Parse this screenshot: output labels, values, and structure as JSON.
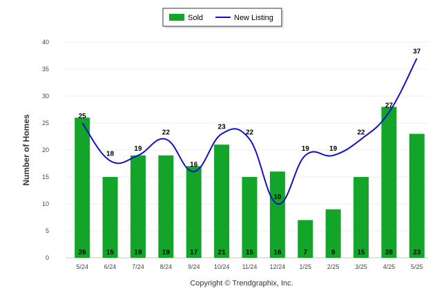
{
  "chart_data": {
    "type": "bar",
    "categories": [
      "5/24",
      "6/24",
      "7/24",
      "8/24",
      "9/24",
      "10/24",
      "11/24",
      "12/24",
      "1/25",
      "2/25",
      "3/25",
      "4/25",
      "5/25"
    ],
    "series": [
      {
        "name": "Sold",
        "type": "bar",
        "values": [
          26,
          15,
          19,
          19,
          17,
          21,
          15,
          16,
          7,
          9,
          15,
          28,
          23
        ]
      },
      {
        "name": "New Listing",
        "type": "line",
        "values": [
          25,
          18,
          19,
          22,
          16,
          23,
          22,
          10,
          19,
          19,
          22,
          27,
          37
        ]
      }
    ],
    "ylabel": "Number of Homes",
    "xlabel": "",
    "ylim": [
      0,
      40
    ],
    "yticks": [
      0,
      5,
      10,
      15,
      20,
      25,
      30,
      35,
      40
    ],
    "grid": true,
    "legend_position": "top-center",
    "colors": {
      "bar": "#12a52a",
      "line": "#1010cc"
    }
  },
  "footer": "Copyright © Trendgraphix, Inc."
}
